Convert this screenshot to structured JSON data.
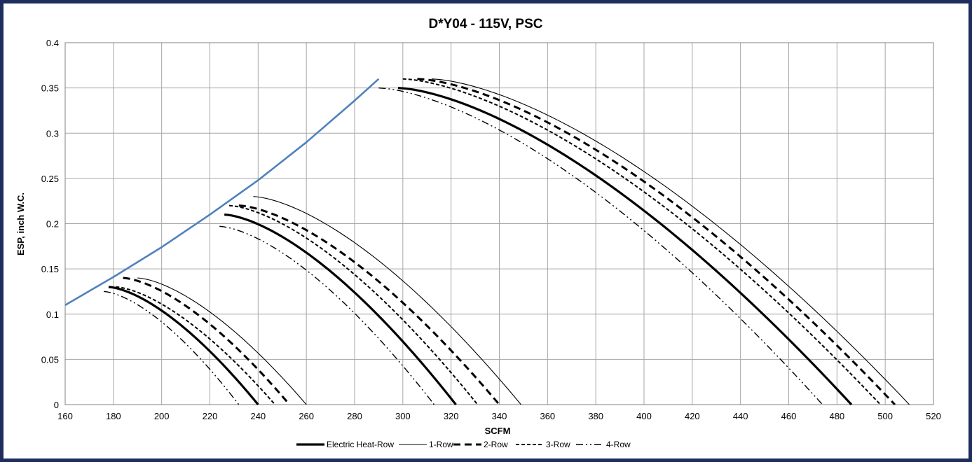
{
  "chart_data": {
    "type": "line",
    "title": "D*Y04 - 115V, PSC",
    "xlabel": "SCFM",
    "ylabel": "ESP, inch W.C.",
    "xlim": [
      160,
      520
    ],
    "ylim": [
      0,
      0.4
    ],
    "xticks": [
      160,
      180,
      200,
      220,
      240,
      260,
      280,
      300,
      320,
      340,
      360,
      380,
      400,
      420,
      440,
      460,
      480,
      500,
      520
    ],
    "yticks": [
      0,
      0.05,
      0.1,
      0.15,
      0.2,
      0.25,
      0.3,
      0.35,
      0.4
    ],
    "ytick_labels": [
      "0",
      "0.05",
      "0.1",
      "0.15",
      "0.2",
      "0.25",
      "0.3",
      "0.35",
      "0.4"
    ],
    "grid": true,
    "legend_position": "bottom",
    "legend": [
      "Electric Heat-Row",
      "1-Row",
      "2-Row",
      "3-Row",
      "4-Row"
    ],
    "envelope": {
      "color": "#4f81bd",
      "x": [
        160,
        180,
        200,
        220,
        240,
        260,
        280,
        290
      ],
      "y": [
        0.11,
        0.141,
        0.174,
        0.21,
        0.248,
        0.29,
        0.336,
        0.36
      ]
    },
    "series": [
      {
        "name": "Electric Heat-Row",
        "style": "thick-solid",
        "segments": [
          {
            "start": [
              178,
              0.13
            ],
            "end": [
              240,
              0
            ]
          },
          {
            "start": [
              226,
              0.21
            ],
            "end": [
              322,
              0
            ]
          },
          {
            "start": [
              298,
              0.35
            ],
            "end": [
              486,
              0
            ]
          }
        ]
      },
      {
        "name": "1-Row",
        "style": "thin-solid",
        "segments": [
          {
            "start": [
              190,
              0.14
            ],
            "end": [
              260,
              0
            ]
          },
          {
            "start": [
              238,
              0.23
            ],
            "end": [
              349,
              0
            ]
          },
          {
            "start": [
              312,
              0.36
            ],
            "end": [
              510,
              0
            ]
          }
        ]
      },
      {
        "name": "2-Row",
        "style": "long-dash",
        "segments": [
          {
            "start": [
              184,
              0.14
            ],
            "end": [
              253,
              0
            ]
          },
          {
            "start": [
              232,
              0.22
            ],
            "end": [
              340,
              0
            ]
          },
          {
            "start": [
              306,
              0.36
            ],
            "end": [
              504,
              0
            ]
          }
        ]
      },
      {
        "name": "3-Row",
        "style": "short-dash",
        "segments": [
          {
            "start": [
              181,
              0.13
            ],
            "end": [
              247,
              0
            ]
          },
          {
            "start": [
              228,
              0.22
            ],
            "end": [
              331,
              0
            ]
          },
          {
            "start": [
              300,
              0.36
            ],
            "end": [
              498,
              0
            ]
          }
        ]
      },
      {
        "name": "4-Row",
        "style": "dash-dot-dot",
        "segments": [
          {
            "start": [
              176,
              0.125
            ],
            "end": [
              232,
              0
            ]
          },
          {
            "start": [
              224,
              0.197
            ],
            "end": [
              313,
              0
            ]
          },
          {
            "start": [
              290,
              0.35
            ],
            "end": [
              474,
              0
            ]
          }
        ]
      }
    ]
  }
}
